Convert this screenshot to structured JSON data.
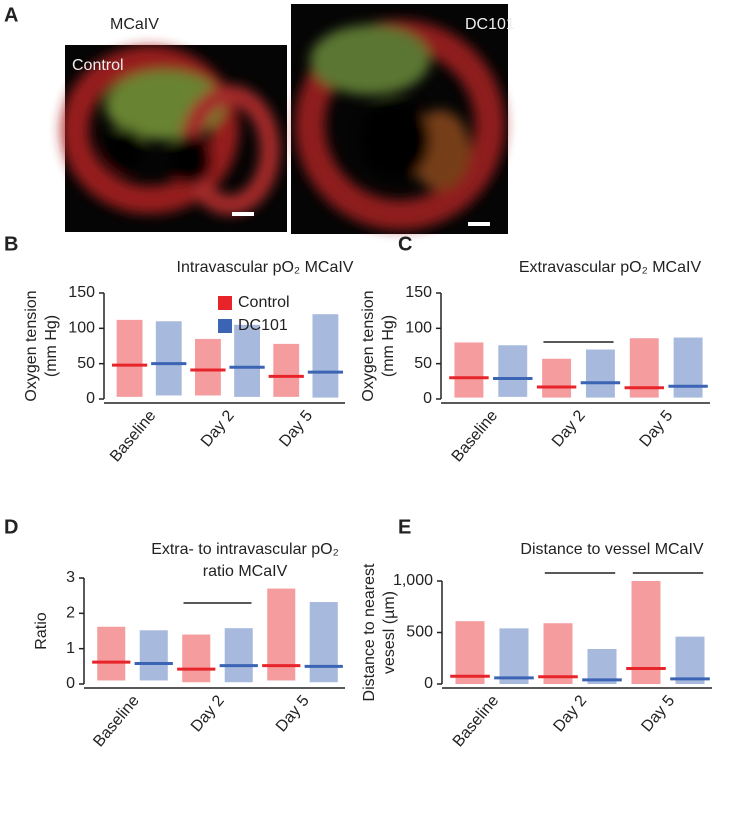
{
  "panel_a": {
    "label": "A",
    "title": "MCaIV",
    "images": [
      {
        "label": "Control"
      },
      {
        "label": "DC101"
      }
    ]
  },
  "chart_data": [
    {
      "type": "dot",
      "panel_label": "B",
      "title": [
        "Intravascular pO₂ MCaIV"
      ],
      "y_label": [
        "Oxygen tension",
        "(mm Hg)"
      ],
      "categories": [
        "Baseline",
        "Day 2",
        "Day 5"
      ],
      "series": [
        {
          "name": "Control",
          "color": "#e8242b",
          "values": [
            48,
            41,
            32
          ],
          "min": [
            3,
            5,
            3
          ],
          "max": [
            112,
            85,
            78
          ]
        },
        {
          "name": "DC101",
          "color": "#3c64b4",
          "values": [
            50,
            45,
            38
          ],
          "min": [
            5,
            3,
            2
          ],
          "max": [
            110,
            105,
            120
          ]
        }
      ],
      "ylim": [
        0,
        150
      ],
      "yticks": [
        0,
        50,
        100,
        150
      ],
      "legend": "upper-right"
    },
    {
      "type": "dot",
      "panel_label": "C",
      "title": [
        "Extravascular pO₂ MCaIV"
      ],
      "y_label": [
        "Oxygen tension",
        "(mm Hg)"
      ],
      "categories": [
        "Baseline",
        "Day 2",
        "Day 5"
      ],
      "series": [
        {
          "name": "Control",
          "color": "#e8242b",
          "values": [
            30,
            17,
            16
          ],
          "min": [
            2,
            2,
            2
          ],
          "max": [
            80,
            57,
            86
          ]
        },
        {
          "name": "DC101",
          "color": "#3c64b4",
          "values": [
            29,
            23,
            18
          ],
          "min": [
            3,
            2,
            2
          ],
          "max": [
            76,
            70,
            87
          ]
        }
      ],
      "ylim": [
        0,
        150
      ],
      "yticks": [
        0,
        50,
        100,
        150
      ]
    },
    {
      "type": "dot",
      "panel_label": "D",
      "title": [
        "Extra- to intravascular pO₂",
        "ratio MCaIV"
      ],
      "y_label": [
        "Ratio"
      ],
      "categories": [
        "Baseline",
        "Day 2",
        "Day 5"
      ],
      "series": [
        {
          "name": "Control",
          "color": "#e8242b",
          "values": [
            0.62,
            0.42,
            0.52
          ],
          "min": [
            0.1,
            0.05,
            0.1
          ],
          "max": [
            1.62,
            1.4,
            2.7
          ]
        },
        {
          "name": "DC101",
          "color": "#3c64b4",
          "values": [
            0.58,
            0.52,
            0.5
          ],
          "min": [
            0.1,
            0.05,
            0.05
          ],
          "max": [
            1.52,
            1.58,
            2.32
          ]
        }
      ],
      "ylim": [
        0,
        3
      ],
      "yticks": [
        0,
        1,
        2,
        3
      ]
    },
    {
      "type": "dot",
      "panel_label": "E",
      "title": [
        "Distance to vessel MCaIV"
      ],
      "y_label": [
        "Distance to nearest",
        "vesesl (µm)"
      ],
      "categories": [
        "Baseline",
        "Day 2",
        "Day 5"
      ],
      "series": [
        {
          "name": "Control",
          "color": "#e8242b",
          "values": [
            75,
            70,
            150
          ],
          "min": [
            0,
            0,
            0
          ],
          "max": [
            610,
            590,
            1000
          ]
        },
        {
          "name": "DC101",
          "color": "#3c64b4",
          "values": [
            60,
            40,
            50
          ],
          "min": [
            0,
            0,
            0
          ],
          "max": [
            540,
            340,
            460
          ]
        }
      ],
      "ylim": [
        0,
        1000
      ],
      "yticks": [
        0,
        500,
        {
          "value": 1000,
          "label": "1,000"
        }
      ]
    }
  ]
}
